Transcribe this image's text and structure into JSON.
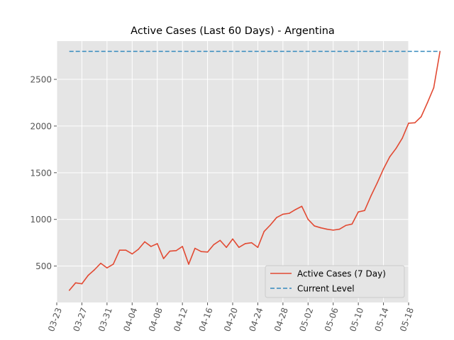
{
  "chart_data": {
    "type": "line",
    "title": "Active Cases (Last 60 Days) - Argentina",
    "xlabel": "",
    "ylabel": "",
    "x_start": "2020-03-25",
    "x_ticks": [
      "03-23",
      "03-27",
      "03-31",
      "04-04",
      "04-08",
      "04-12",
      "04-16",
      "04-20",
      "04-24",
      "04-28",
      "05-02",
      "05-06",
      "05-10",
      "05-14",
      "05-18"
    ],
    "x_range": [
      "2020-03-23",
      "2020-05-18"
    ],
    "y_ticks": [
      500,
      1000,
      1500,
      2000,
      2500
    ],
    "y_range": [
      110,
      2910
    ],
    "grid": true,
    "legend_position": "lower right",
    "colors": {
      "background": "#e5e5e5",
      "grid": "#ffffff",
      "active": "#e24a33",
      "current": "#348abd"
    },
    "series": [
      {
        "name": "Active Cases (7 Day)",
        "style": "solid",
        "values": [
          240,
          320,
          310,
          400,
          460,
          530,
          480,
          520,
          670,
          670,
          630,
          680,
          760,
          710,
          740,
          580,
          660,
          665,
          710,
          520,
          690,
          655,
          650,
          730,
          775,
          700,
          790,
          700,
          740,
          750,
          700,
          870,
          940,
          1020,
          1055,
          1065,
          1105,
          1140,
          1000,
          930,
          910,
          895,
          885,
          895,
          935,
          950,
          1080,
          1095,
          1250,
          1390,
          1540,
          1670,
          1760,
          1870,
          2030,
          2035,
          2100,
          2250,
          2410,
          2800
        ]
      },
      {
        "name": "Current Level",
        "style": "dashed",
        "values": [
          2800,
          2800
        ]
      }
    ]
  }
}
